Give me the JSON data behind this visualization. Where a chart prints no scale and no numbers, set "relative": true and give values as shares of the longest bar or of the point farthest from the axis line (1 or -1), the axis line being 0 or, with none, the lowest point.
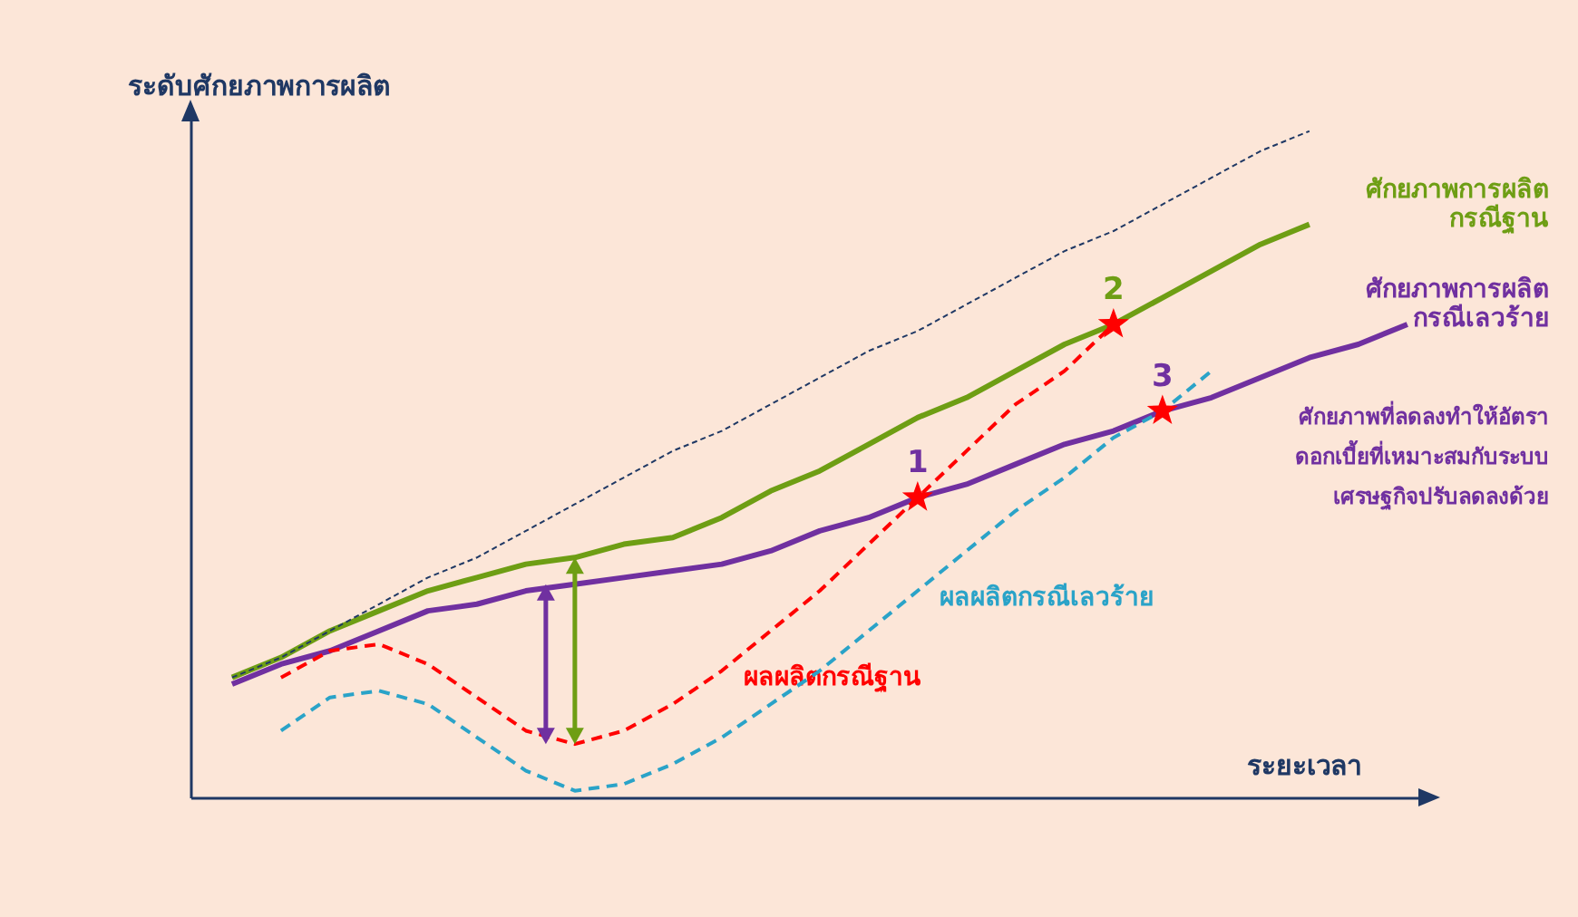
{
  "chart_data": {
    "type": "line",
    "relative": true,
    "xlabel": "ระยะเวลา",
    "ylabel": "ระดับศักยภาพการผลิต",
    "categories": [
      null,
      null,
      null,
      null,
      null,
      null,
      null,
      null,
      null,
      null,
      null,
      null,
      null,
      null,
      null,
      null,
      null,
      null,
      null,
      null,
      null,
      null,
      null,
      null,
      null
    ],
    "series": [
      {
        "color": "#1f3864",
        "line_style": "dotted",
        "values": [
          0.18,
          0.21,
          0.25,
          0.29,
          0.33,
          0.36,
          0.4,
          0.44,
          0.48,
          0.52,
          0.55,
          0.59,
          0.63,
          0.67,
          0.7,
          0.74,
          0.78,
          0.82,
          0.85,
          0.89,
          0.93,
          0.97,
          1.0,
          null,
          null
        ]
      },
      {
        "name": "ศักยภาพการผลิต\nกรณีฐาน",
        "color": "#6e9e14",
        "line_style": "solid",
        "values": [
          0.18,
          0.21,
          0.25,
          0.28,
          0.31,
          0.33,
          0.35,
          0.36,
          0.38,
          0.39,
          0.42,
          0.46,
          0.49,
          0.53,
          0.57,
          0.6,
          0.64,
          0.68,
          0.71,
          0.75,
          0.79,
          0.83,
          0.86,
          null,
          null
        ]
      },
      {
        "name": "ศักยภาพการผลิต\nกรณีเลวร้าย",
        "color": "#7030a0",
        "line_style": "solid",
        "values": [
          0.17,
          0.2,
          0.22,
          0.25,
          0.28,
          0.29,
          0.31,
          0.32,
          0.33,
          0.34,
          0.35,
          0.37,
          0.4,
          0.42,
          0.45,
          0.47,
          0.5,
          0.53,
          0.55,
          0.58,
          0.6,
          0.63,
          0.66,
          0.68,
          0.71
        ]
      },
      {
        "name": "ผลผลิตกรณีฐาน",
        "color": "#ff0000",
        "line_style": "dashed",
        "values": [
          null,
          0.18,
          0.22,
          0.23,
          0.2,
          0.15,
          0.1,
          0.08,
          0.1,
          0.14,
          0.19,
          0.25,
          0.31,
          0.38,
          0.45,
          0.52,
          0.59,
          0.64,
          0.71,
          null,
          null,
          null,
          null,
          null,
          null
        ]
      },
      {
        "name": "ผลผลิตกรณีเลวร้าย",
        "color": "#2aa3c8",
        "line_style": "dashed",
        "values": [
          null,
          0.1,
          0.15,
          0.16,
          0.14,
          0.09,
          0.04,
          0.01,
          0.02,
          0.05,
          0.09,
          0.14,
          0.19,
          0.25,
          0.31,
          0.37,
          0.43,
          0.48,
          0.54,
          0.58,
          0.64,
          null,
          null,
          null,
          null
        ]
      }
    ],
    "annotations": [
      "ศักยภาพที่ลดลงทำให้อัตรา\nดอกเบี้ยที่เหมาะสมกับระบบ\nเศรษฐกิจปรับลดลงด้วย",
      "1",
      "2",
      "3"
    ]
  }
}
